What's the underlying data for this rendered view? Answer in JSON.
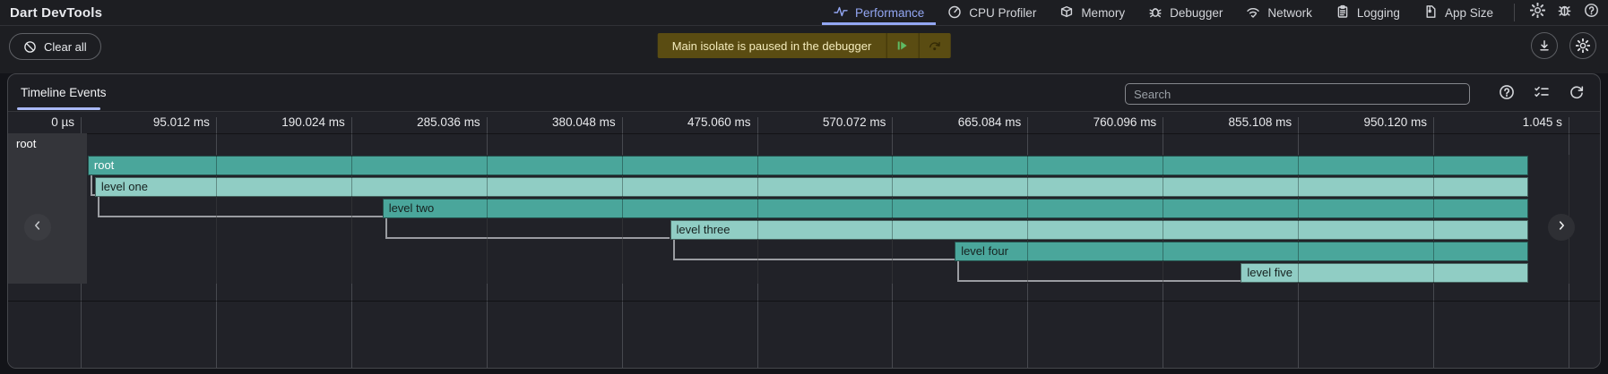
{
  "header": {
    "title": "Dart DevTools",
    "tabs": [
      {
        "label": "Performance",
        "icon": "performance-icon",
        "selected": true
      },
      {
        "label": "CPU Profiler",
        "icon": "cpu-profiler-icon",
        "selected": false
      },
      {
        "label": "Memory",
        "icon": "memory-icon",
        "selected": false
      },
      {
        "label": "Debugger",
        "icon": "debugger-icon",
        "selected": false
      },
      {
        "label": "Network",
        "icon": "network-icon",
        "selected": false
      },
      {
        "label": "Logging",
        "icon": "logging-icon",
        "selected": false
      },
      {
        "label": "App Size",
        "icon": "app-size-icon",
        "selected": false
      }
    ],
    "action_icons": [
      "settings-icon",
      "report-bug-icon",
      "help-icon"
    ]
  },
  "toolbar": {
    "clear_all_label": "Clear all",
    "banner": {
      "message": "Main isolate is paused in the debugger",
      "buttons": [
        "resume-icon",
        "step-over-icon"
      ]
    },
    "action_icons": [
      "download-icon",
      "settings-icon"
    ]
  },
  "panel": {
    "tab_label": "Timeline Events",
    "search_placeholder": "Search",
    "icons": [
      "help-icon",
      "filter-checklist-icon",
      "refresh-icon"
    ]
  },
  "chart_data": {
    "type": "flame",
    "title": "Timeline Events flame chart",
    "x_unit": "ms",
    "tick_interval_ms": 95.012,
    "x_range_ms": [
      0,
      1072
    ],
    "grid": true,
    "group_label": "root",
    "x_ticks": [
      {
        "label": "0 µs",
        "ms": 0
      },
      {
        "label": "95.012 ms",
        "ms": 95.012
      },
      {
        "label": "190.024 ms",
        "ms": 190.024
      },
      {
        "label": "285.036 ms",
        "ms": 285.036
      },
      {
        "label": "380.048 ms",
        "ms": 380.048
      },
      {
        "label": "475.060 ms",
        "ms": 475.06
      },
      {
        "label": "570.072 ms",
        "ms": 570.072
      },
      {
        "label": "665.084 ms",
        "ms": 665.084
      },
      {
        "label": "760.096 ms",
        "ms": 760.096
      },
      {
        "label": "855.108 ms",
        "ms": 855.108
      },
      {
        "label": "950.120 ms",
        "ms": 950.12
      },
      {
        "label": "1.045 s",
        "ms": 1045.132
      }
    ],
    "frames": [
      {
        "label": "root",
        "depth": 0,
        "start_ms": 5,
        "end_ms": 1017,
        "shade": "medium",
        "text": "light"
      },
      {
        "label": "level one",
        "depth": 1,
        "start_ms": 10,
        "end_ms": 1017,
        "shade": "light",
        "text": "dark"
      },
      {
        "label": "level two",
        "depth": 2,
        "start_ms": 212,
        "end_ms": 1017,
        "shade": "medium",
        "text": "dark"
      },
      {
        "label": "level three",
        "depth": 3,
        "start_ms": 414,
        "end_ms": 1017,
        "shade": "light",
        "text": "dark"
      },
      {
        "label": "level four",
        "depth": 4,
        "start_ms": 614,
        "end_ms": 1017,
        "shade": "medium",
        "text": "dark"
      },
      {
        "label": "level five",
        "depth": 5,
        "start_ms": 815,
        "end_ms": 1017,
        "shade": "light",
        "text": "dark"
      }
    ],
    "colors": {
      "bar_medium": "#4aa69b",
      "bar_light": "#90cdc4",
      "bar_text_light": "#ffffff",
      "bar_text_dark": "#16211f"
    }
  },
  "colors": {
    "accent": "#93a7f3",
    "banner_bg": "#5a4c12",
    "banner_text": "#f4ecbd",
    "resume_green": "#5fba63"
  }
}
